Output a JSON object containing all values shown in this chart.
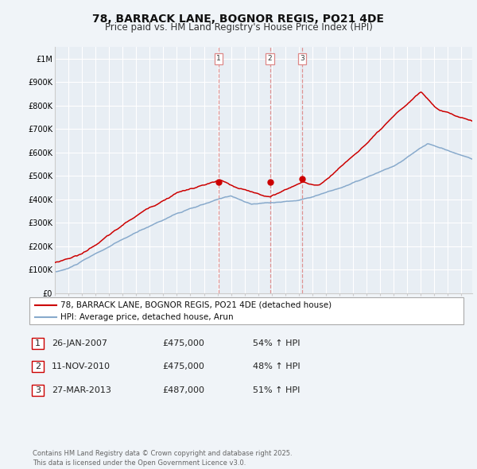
{
  "title": "78, BARRACK LANE, BOGNOR REGIS, PO21 4DE",
  "subtitle": "Price paid vs. HM Land Registry's House Price Index (HPI)",
  "ylim": [
    0,
    1050000
  ],
  "yticks": [
    0,
    100000,
    200000,
    300000,
    400000,
    500000,
    600000,
    700000,
    800000,
    900000,
    1000000
  ],
  "ytick_labels": [
    "£0",
    "£100K",
    "£200K",
    "£300K",
    "£400K",
    "£500K",
    "£600K",
    "£700K",
    "£800K",
    "£900K",
    "£1M"
  ],
  "xlim_start": 1995.0,
  "xlim_end": 2025.8,
  "red_line_color": "#cc0000",
  "blue_line_color": "#88aacc",
  "vline_color": "#dd8888",
  "background_color": "#f0f4f8",
  "plot_bg_color": "#e8eef4",
  "grid_color": "#ffffff",
  "sale_dates": [
    2007.07,
    2010.87,
    2013.24
  ],
  "sale_prices": [
    475000,
    475000,
    487000
  ],
  "sale_labels": [
    "1",
    "2",
    "3"
  ],
  "legend_line1": "78, BARRACK LANE, BOGNOR REGIS, PO21 4DE (detached house)",
  "legend_line2": "HPI: Average price, detached house, Arun",
  "table_entries": [
    {
      "num": "1",
      "date": "26-JAN-2007",
      "price": "£475,000",
      "hpi": "54% ↑ HPI"
    },
    {
      "num": "2",
      "date": "11-NOV-2010",
      "price": "£475,000",
      "hpi": "48% ↑ HPI"
    },
    {
      "num": "3",
      "date": "27-MAR-2013",
      "price": "£487,000",
      "hpi": "51% ↑ HPI"
    }
  ],
  "footnote": "Contains HM Land Registry data © Crown copyright and database right 2025.\nThis data is licensed under the Open Government Licence v3.0.",
  "title_fontsize": 10,
  "subtitle_fontsize": 8.5,
  "tick_fontsize": 7,
  "legend_fontsize": 7.5,
  "table_fontsize": 8
}
